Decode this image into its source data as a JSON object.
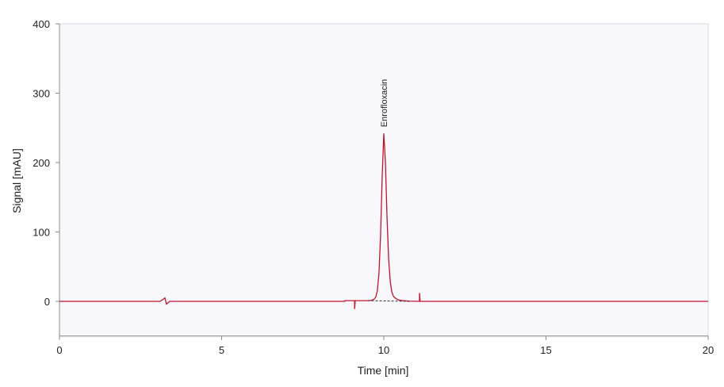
{
  "chart_data": {
    "type": "line",
    "xlabel": "Time [min]",
    "ylabel": "Signal [mAU]",
    "xlim": [
      0,
      20
    ],
    "ylim": [
      -50,
      400
    ],
    "xticks": [
      0,
      5,
      10,
      15,
      20
    ],
    "yticks": [
      0,
      100,
      200,
      300,
      400
    ],
    "background": "#f8f7fc",
    "series": [
      {
        "color": "#c0142b",
        "dash": false,
        "x": [
          0,
          3.1,
          3.2,
          3.25,
          3.3,
          3.35,
          3.4,
          8.8,
          8.8,
          9.1,
          9.1,
          9.12,
          9.5,
          9.6,
          9.7,
          9.75,
          9.8,
          9.85,
          9.9,
          9.95,
          10.0,
          10.05,
          10.1,
          10.15,
          10.2,
          10.25,
          10.3,
          10.4,
          10.5,
          10.6,
          10.8,
          11.1,
          11.1,
          11.12,
          20
        ],
        "values": [
          0,
          0,
          3,
          5,
          -4,
          -2,
          0,
          0,
          1,
          1,
          -11,
          1,
          1,
          1.3,
          3,
          6,
          15,
          40,
          95,
          180,
          242,
          200,
          120,
          60,
          28,
          13,
          7,
          3,
          1.5,
          1,
          0.3,
          0,
          12,
          0,
          0
        ]
      },
      {
        "color": "#333333",
        "dash": true,
        "x": [
          9.5,
          10.8
        ],
        "values": [
          1,
          0
        ]
      }
    ],
    "annotations": [
      {
        "text": "Enrofloxacin",
        "x": 10
      }
    ]
  }
}
